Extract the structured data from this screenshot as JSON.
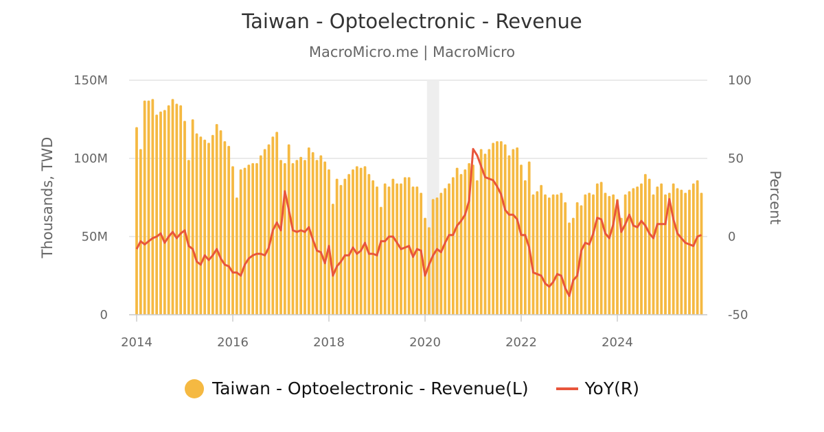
{
  "colors": {
    "bar": "#f5b942",
    "line": "#e8553b",
    "grid": "#e3e3e3",
    "band": "#eeeeee"
  },
  "chart_data": {
    "type": "bar+line",
    "title": "Taiwan - Optoelectronic - Revenue",
    "subtitle": "MacroMicro.me | MacroMicro",
    "ylabel_left": "Thousands, TWD",
    "ylabel_right": "Percent",
    "start": "2014-01",
    "frequency": "monthly",
    "ylim_left": [
      0,
      150
    ],
    "ylim_right": [
      -50,
      100
    ],
    "yticks_left": [
      "0",
      "50M",
      "100M",
      "150M"
    ],
    "yticks_left_values": [
      0,
      50,
      100,
      150
    ],
    "yticks_right": [
      "-50",
      "0",
      "50",
      "100"
    ],
    "yticks_right_values": [
      -50,
      0,
      50,
      100
    ],
    "xticks": [
      "2014",
      "2016",
      "2018",
      "2020",
      "2022",
      "2024"
    ],
    "xticks_years": [
      2014,
      2016,
      2018,
      2020,
      2022,
      2024
    ],
    "shaded_period": [
      "2020-02",
      "2020-04"
    ],
    "legend_position": "bottom",
    "series": [
      {
        "name": "Taiwan - Optoelectronic - Revenue(L)",
        "axis": "left",
        "type": "bar",
        "unit": "M",
        "values": [
          120,
          106,
          137,
          137,
          138,
          128,
          130,
          131,
          134,
          138,
          135,
          134,
          124,
          99,
          125,
          116,
          114,
          112,
          110,
          115,
          122,
          118,
          111,
          108,
          95,
          75,
          93,
          94,
          96,
          97,
          97,
          102,
          106,
          109,
          114,
          117,
          99,
          97,
          109,
          97,
          99,
          101,
          99,
          107,
          104,
          99,
          102,
          98,
          93,
          71,
          87,
          83,
          87,
          90,
          93,
          95,
          94,
          95,
          90,
          86,
          82,
          69,
          84,
          82,
          87,
          84,
          84,
          88,
          88,
          82,
          82,
          78,
          62,
          56,
          74,
          75,
          78,
          81,
          84,
          88,
          94,
          90,
          93,
          97,
          96,
          86,
          106,
          103,
          106,
          110,
          111,
          111,
          109,
          102,
          106,
          107,
          96,
          86,
          98,
          77,
          79,
          83,
          77,
          75,
          77,
          77,
          78,
          72,
          59,
          62,
          72,
          70,
          77,
          78,
          77,
          84,
          85,
          78,
          76,
          77,
          74,
          62,
          77,
          79,
          81,
          82,
          84,
          90,
          87,
          77,
          82,
          84,
          77,
          78,
          84,
          81,
          80,
          78,
          80,
          84,
          86,
          78
        ]
      },
      {
        "name": "YoY(R)",
        "axis": "right",
        "type": "line",
        "unit": "%",
        "values": [
          -8,
          -3,
          -5,
          -3,
          -1,
          0,
          2,
          -4,
          0,
          3,
          -1,
          2,
          4,
          -6,
          -8,
          -16,
          -18,
          -12,
          -15,
          -12,
          -8,
          -14,
          -18,
          -19,
          -23,
          -23,
          -25,
          -18,
          -14,
          -12,
          -11,
          -11,
          -12,
          -7,
          4,
          9,
          4,
          29,
          17,
          4,
          3,
          4,
          3,
          6,
          -2,
          -9,
          -10,
          -17,
          -6,
          -25,
          -19,
          -16,
          -12,
          -12,
          -7,
          -11,
          -9,
          -4,
          -11,
          -11,
          -12,
          -3,
          -3,
          0,
          0,
          -4,
          -8,
          -7,
          -6,
          -13,
          -8,
          -9,
          -25,
          -18,
          -12,
          -8,
          -10,
          -4,
          1,
          1,
          7,
          10,
          14,
          23,
          56,
          52,
          45,
          38,
          37,
          36,
          32,
          27,
          17,
          14,
          14,
          11,
          1,
          1,
          -7,
          -23,
          -24,
          -25,
          -30,
          -32,
          -29,
          -24,
          -25,
          -33,
          -38,
          -28,
          -25,
          -9,
          -4,
          -5,
          2,
          12,
          11,
          2,
          -1,
          8,
          23,
          3,
          8,
          14,
          7,
          6,
          10,
          7,
          2,
          -1,
          8,
          8,
          8,
          24,
          11,
          2,
          -1,
          -4,
          -5,
          -6,
          0,
          1
        ]
      }
    ]
  }
}
